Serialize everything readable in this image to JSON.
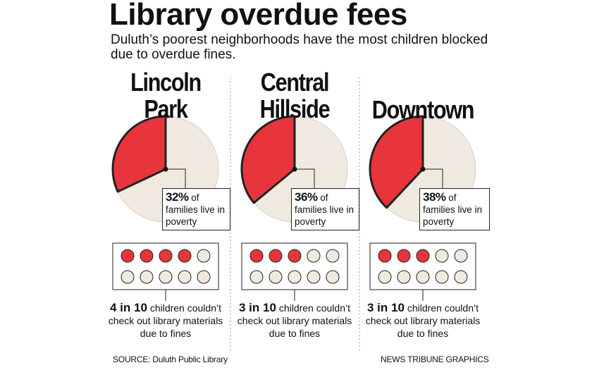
{
  "title": "Library overdue fees",
  "subtitle": "Duluth’s poorest neighborhoods have the most children blocked due to overdue fines.",
  "source": "SOURCE: Duluth Public Library",
  "credit": "NEWS TRIBUNE GRAPHICS",
  "chart_data": [
    {
      "type": "pie",
      "title": "Lincoln Park",
      "values": [
        32
      ],
      "value_labels": [
        "32%"
      ],
      "caption": "of families live in poverty",
      "color": "#e8353b",
      "dots_filled": 4,
      "dots_total": 10,
      "dot_label": "4 in 10",
      "dot_caption": "children couldn’t check out library materials due to fines"
    },
    {
      "type": "pie",
      "title": "Central Hillside",
      "values": [
        36
      ],
      "value_labels": [
        "36%"
      ],
      "caption": "of families live in poverty",
      "color": "#e8353b",
      "dots_filled": 3,
      "dots_total": 10,
      "dot_label": "3 in 10",
      "dot_caption": "children couldn’t check out library materials due to fines"
    },
    {
      "type": "pie",
      "title": "Downtown",
      "values": [
        38
      ],
      "value_labels": [
        "38%"
      ],
      "caption": "of families live in poverty",
      "color": "#e8353b",
      "dots_filled": 3,
      "dots_total": 10,
      "dot_label": "3 in 10",
      "dot_caption": "children couldn’t check out library materials due to fines"
    }
  ]
}
